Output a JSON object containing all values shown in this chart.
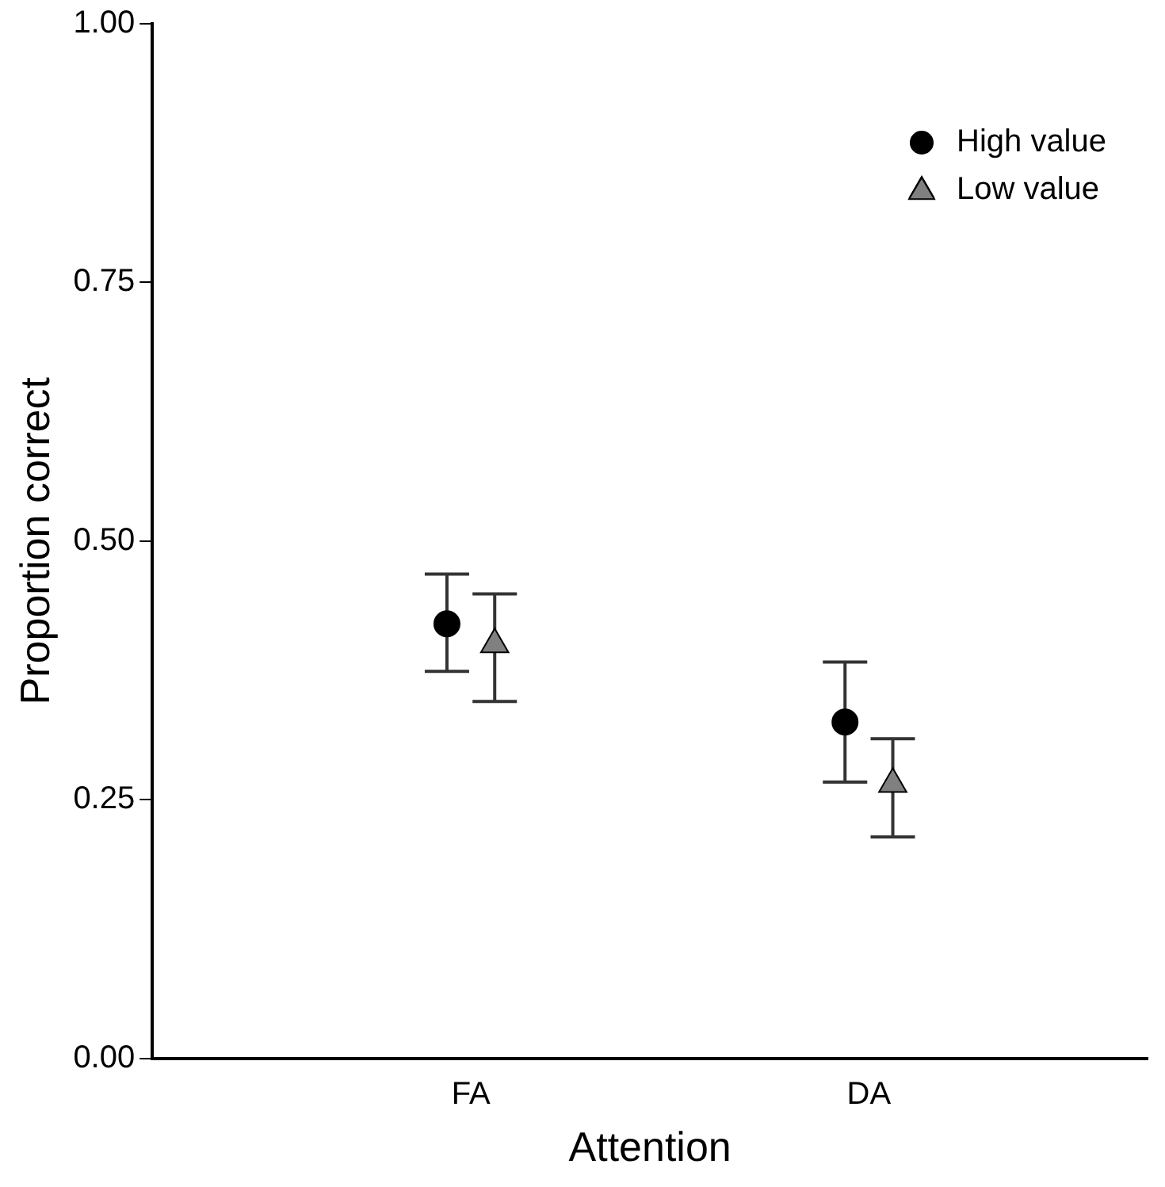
{
  "chart_data": {
    "type": "scatter",
    "xlabel": "Attention",
    "ylabel": "Proportion correct",
    "categories": [
      "FA",
      "DA"
    ],
    "series": [
      {
        "name": "High value",
        "color": "#000000",
        "marker": "circle",
        "values": [
          0.42,
          0.325
        ],
        "errors": [
          [
            0.374,
            0.468
          ],
          [
            0.267,
            0.383
          ]
        ]
      },
      {
        "name": "Low value",
        "color": "#808080",
        "marker": "triangle",
        "values": [
          0.4,
          0.265
        ],
        "errors": [
          [
            0.345,
            0.449
          ],
          [
            0.214,
            0.309
          ]
        ]
      }
    ],
    "ylim": [
      0,
      1
    ],
    "yticks": [
      {
        "value": 0,
        "label": "0.00"
      },
      {
        "value": 0.25,
        "label": "0.25"
      },
      {
        "value": 0.5,
        "label": "0.50"
      },
      {
        "value": 0.75,
        "label": "0.75"
      },
      {
        "value": 1,
        "label": "1.00"
      }
    ],
    "grid": false,
    "legend": "top right"
  }
}
